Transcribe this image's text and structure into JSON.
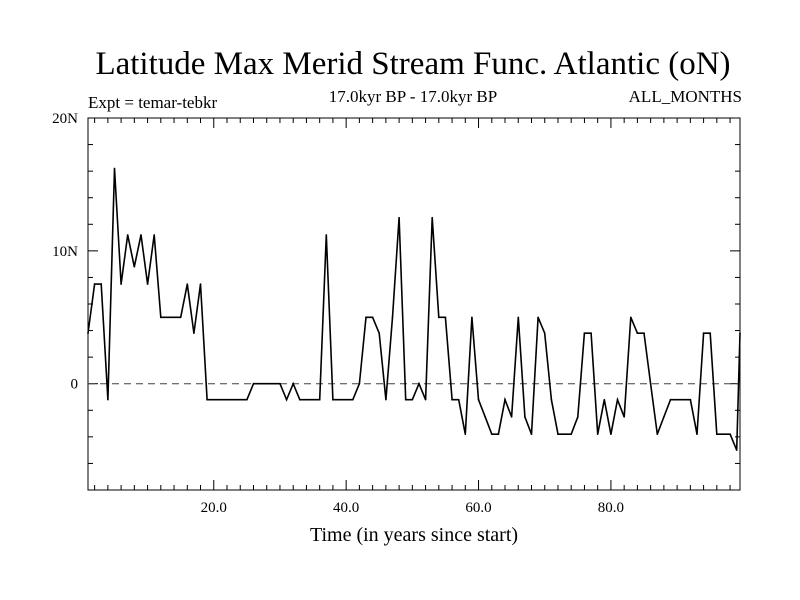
{
  "chart_data": {
    "type": "line",
    "title": "Latitude Max Merid Stream Func. Atlantic (oN)",
    "subtitle_left": "Expt = temar-tebkr",
    "subtitle_center": "17.0kyr BP - 17.0kyr BP",
    "subtitle_right": "ALL_MONTHS",
    "xlabel": "Time (in years since start)",
    "ylabel": "",
    "xlim": [
      1,
      99.5
    ],
    "ylim": [
      -8,
      20
    ],
    "x_ticks": [
      {
        "value": 20,
        "label": "20.0"
      },
      {
        "value": 40,
        "label": "40.0"
      },
      {
        "value": 60,
        "label": "60.0"
      },
      {
        "value": 80,
        "label": "80.0"
      }
    ],
    "y_ticks": [
      {
        "value": 20,
        "label": "20N"
      },
      {
        "value": 10,
        "label": "10N"
      },
      {
        "value": 0,
        "label": "0"
      }
    ],
    "reference_line": {
      "y": 0,
      "style": "dashed"
    },
    "x": [
      1,
      2,
      3,
      4,
      5,
      6,
      7,
      8,
      9,
      10,
      11,
      12,
      13,
      14,
      15,
      16,
      17,
      18,
      19,
      20,
      21,
      22,
      23,
      24,
      25,
      26,
      27,
      28,
      29,
      30,
      31,
      32,
      33,
      34,
      35,
      36,
      37,
      38,
      39,
      40,
      41,
      42,
      43,
      44,
      45,
      46,
      47,
      48,
      49,
      50,
      51,
      52,
      53,
      54,
      55,
      56,
      57,
      58,
      59,
      60,
      61,
      62,
      63,
      64,
      65,
      66,
      67,
      68,
      69,
      70,
      71,
      72,
      73,
      74,
      75,
      76,
      77,
      78,
      79,
      80,
      81,
      82,
      83,
      84,
      85,
      86,
      87,
      88,
      89,
      90,
      91,
      92,
      93,
      94,
      95,
      96,
      97,
      98,
      99,
      99.5
    ],
    "series": [
      {
        "name": "Latitude Max Merid Stream Func. Atlantic",
        "values": [
          3.8,
          7.5,
          7.5,
          -1.2,
          16.2,
          7.5,
          11.2,
          8.8,
          11.2,
          7.5,
          11.2,
          5,
          5,
          5,
          5,
          7.5,
          3.8,
          7.5,
          -1.2,
          -1.2,
          -1.2,
          -1.2,
          -1.2,
          -1.2,
          -1.2,
          0,
          0,
          0,
          0,
          0,
          -1.2,
          0,
          -1.2,
          -1.2,
          -1.2,
          -1.2,
          11.2,
          -1.2,
          -1.2,
          -1.2,
          -1.2,
          0,
          5,
          5,
          3.8,
          -1.2,
          5,
          12.5,
          -1.2,
          -1.2,
          0,
          -1.2,
          12.5,
          5,
          5,
          -1.2,
          -1.2,
          -3.8,
          5,
          -1.2,
          -2.5,
          -3.8,
          -3.8,
          -1.2,
          -2.5,
          5,
          -2.5,
          -3.8,
          5,
          3.8,
          -1.2,
          -3.8,
          -3.8,
          -3.8,
          -2.5,
          3.8,
          3.8,
          -3.8,
          -1.2,
          -3.8,
          -1.2,
          -2.5,
          5,
          3.8,
          3.8,
          0,
          -3.8,
          -2.5,
          -1.2,
          -1.2,
          -1.2,
          -1.2,
          -3.8,
          3.8,
          3.8,
          -3.8,
          -3.8,
          -3.8,
          -5,
          3.8
        ]
      }
    ]
  }
}
